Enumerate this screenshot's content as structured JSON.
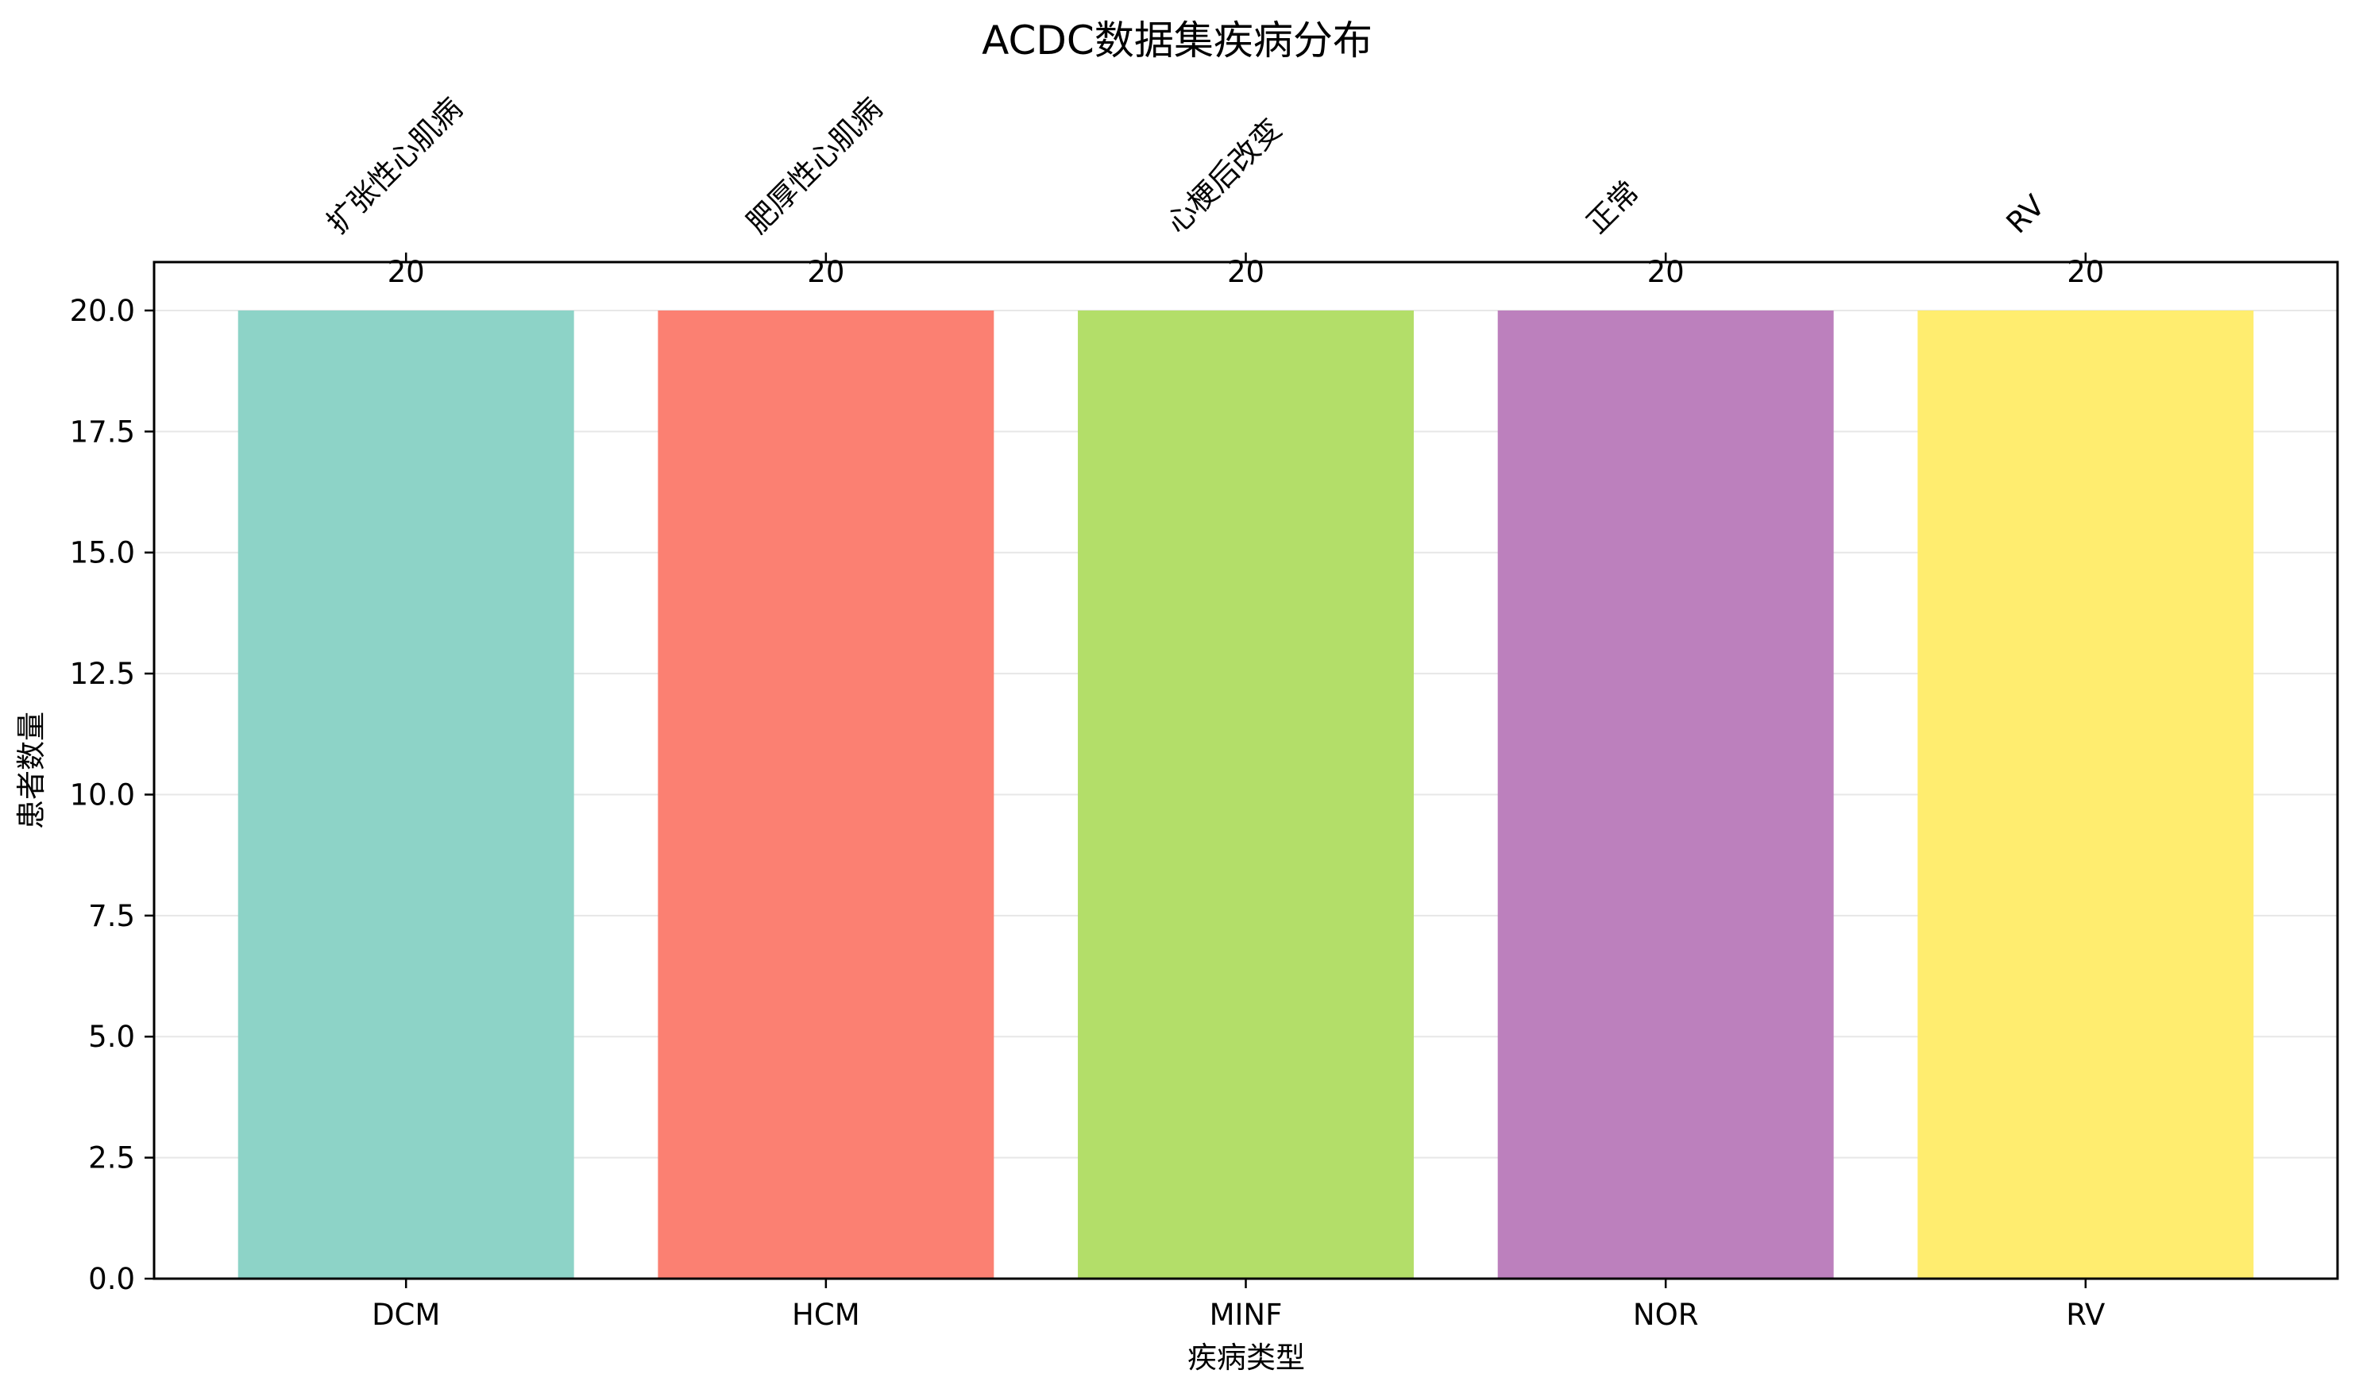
{
  "chart_data": {
    "type": "bar",
    "title": "ACDC数据集疾病分布",
    "xlabel": "疾病类型",
    "ylabel": "患者数量",
    "categories": [
      "DCM",
      "HCM",
      "MINF",
      "NOR",
      "RV"
    ],
    "top_labels": [
      "扩张性心肌病",
      "肥厚性心肌病",
      "心梗后改变",
      "正常",
      "RV"
    ],
    "values": [
      20,
      20,
      20,
      20,
      20
    ],
    "value_labels": [
      "20",
      "20",
      "20",
      "20",
      "20"
    ],
    "colors": [
      "#8dd3c7",
      "#fb8072",
      "#b3de69",
      "#bc80bd",
      "#ffed6f"
    ],
    "ylim": [
      0,
      21
    ],
    "yticks": [
      0,
      2.5,
      5,
      7.5,
      10,
      12.5,
      15,
      17.5,
      20
    ],
    "ytick_labels": [
      "0.0",
      "2.5",
      "5.0",
      "7.5",
      "10.0",
      "12.5",
      "15.0",
      "17.5",
      "20.0"
    ],
    "grid": "y",
    "legend": "none"
  }
}
